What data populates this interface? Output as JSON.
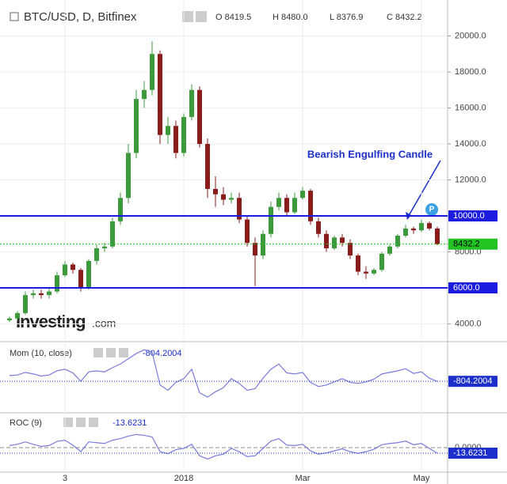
{
  "chart_data": [
    {
      "type": "candlestick",
      "title": "BTC/USD, D, Bitfinex",
      "ohlc_legend": [
        "O 8419.5",
        "H 8480.0",
        "L 8376.9",
        "C 8432.2"
      ],
      "categories": [
        null,
        null,
        null,
        null,
        null,
        null,
        null,
        "3",
        null,
        null,
        null,
        null,
        null,
        null,
        null,
        null,
        null,
        null,
        null,
        null,
        null,
        null,
        "2018",
        null,
        null,
        null,
        null,
        null,
        null,
        null,
        null,
        null,
        null,
        null,
        null,
        null,
        null,
        "Mar",
        null,
        null,
        null,
        null,
        null,
        null,
        null,
        null,
        null,
        null,
        null,
        null,
        null,
        null,
        "May",
        null,
        null
      ],
      "open": [
        4200,
        4300,
        4600,
        5600,
        5700,
        5600,
        5800,
        6700,
        7300,
        7000,
        6000,
        7500,
        8200,
        8300,
        9700,
        11000,
        13500,
        16500,
        17000,
        19000,
        14500,
        15000,
        13500,
        15500,
        17000,
        14000,
        11500,
        11200,
        10900,
        11000,
        9800,
        8500,
        7800,
        9000,
        10500,
        11000,
        10200,
        11000,
        11400,
        9700,
        9000,
        8200,
        8800,
        8500,
        7800,
        6900,
        6800,
        7000,
        7900,
        8300,
        8900,
        9300,
        9200,
        9600,
        9300
      ],
      "high": [
        4400,
        4700,
        5800,
        5900,
        5900,
        6000,
        6900,
        7500,
        7400,
        7100,
        7600,
        8400,
        8500,
        9900,
        11300,
        14000,
        17000,
        17500,
        19700,
        19200,
        15500,
        15300,
        15700,
        17300,
        17200,
        14300,
        12200,
        11600,
        11300,
        11300,
        10000,
        8800,
        9200,
        10800,
        11300,
        11200,
        11300,
        11600,
        11500,
        9900,
        9200,
        8900,
        9000,
        8700,
        7900,
        7200,
        7100,
        8000,
        8400,
        9000,
        9500,
        9400,
        9800,
        9700,
        9400
      ],
      "low": [
        4100,
        4200,
        4500,
        5400,
        5400,
        5400,
        5700,
        6600,
        6800,
        5800,
        5900,
        7300,
        8000,
        8200,
        9500,
        10700,
        13200,
        16000,
        16700,
        14000,
        14000,
        13200,
        13300,
        15300,
        13800,
        11000,
        10500,
        10600,
        10700,
        9600,
        8300,
        6100,
        7600,
        8800,
        10300,
        10000,
        10100,
        10900,
        9500,
        8800,
        8000,
        8100,
        8300,
        7600,
        6700,
        6500,
        6700,
        6900,
        7800,
        8200,
        8800,
        9000,
        9100,
        9200,
        8376.9
      ],
      "close": [
        4300,
        4600,
        5600,
        5700,
        5600,
        5800,
        6700,
        7300,
        7000,
        6000,
        7500,
        8200,
        8300,
        9700,
        11000,
        13500,
        16500,
        17000,
        19000,
        14500,
        15000,
        13500,
        15500,
        17000,
        14000,
        11500,
        11200,
        10900,
        11000,
        9800,
        8500,
        7800,
        9000,
        10500,
        11000,
        10200,
        11000,
        11400,
        9700,
        9000,
        8200,
        8800,
        8500,
        7800,
        6900,
        6800,
        7000,
        7900,
        8300,
        8900,
        9300,
        9200,
        9600,
        9300,
        8432.2
      ],
      "up_color": "#3c9a3c",
      "down_color": "#8b1c1c",
      "ylim": [
        3100,
        22000
      ],
      "yticks": [
        {
          "value": 4000,
          "label": "4000.0"
        },
        {
          "value": 6000,
          "label": "6000.0"
        },
        {
          "value": 8000,
          "label": "8000.0"
        },
        {
          "value": 10000,
          "label": "10000.0"
        },
        {
          "value": 12000,
          "label": "12000.0"
        },
        {
          "value": 14000,
          "label": "14000.0"
        },
        {
          "value": 16000,
          "label": "16000.0"
        },
        {
          "value": 18000,
          "label": "18000.0"
        },
        {
          "value": 20000,
          "label": "20000.0"
        }
      ],
      "grid": true,
      "hlines": [
        {
          "value": 10000,
          "label": "10000.0",
          "color": "#1c1ce0"
        },
        {
          "value": 6000,
          "label": "6000.0",
          "color": "#1c1ce0"
        }
      ],
      "last_price": {
        "value": 8432.2,
        "color": "#22c322"
      },
      "annotation": "Bearish Engulfing Candle",
      "watermark": {
        "brand": "Investing",
        "suffix": ".com"
      }
    },
    {
      "type": "line",
      "title": "Mom (10, close)",
      "color": "#7b7bdb",
      "last_color": "#1c2fcb",
      "ylim": [
        -6500,
        6000
      ],
      "values": [
        300,
        400,
        900,
        600,
        200,
        400,
        1200,
        1500,
        800,
        -800,
        1000,
        1200,
        1000,
        1800,
        2500,
        3500,
        4500,
        5200,
        4800,
        -1500,
        -2500,
        -1000,
        -300,
        1500,
        -3000,
        -3800,
        -2800,
        -2000,
        -300,
        -1200,
        -2500,
        -2200,
        -200,
        1500,
        2500,
        800,
        600,
        900,
        -1000,
        -1800,
        -1500,
        -900,
        -300,
        -1000,
        -1200,
        -900,
        -400,
        600,
        900,
        1200,
        1600,
        700,
        1000,
        -200,
        -804.2004
      ]
    },
    {
      "type": "line",
      "title": "ROC (9)",
      "color": "#7b7bdb",
      "last_color": "#1c2fcb",
      "ylim": [
        -56,
        79
      ],
      "yticks": [
        {
          "value": 0,
          "label": "0.0000"
        }
      ],
      "values": [
        5,
        8,
        14,
        8,
        3,
        5,
        15,
        18,
        6,
        -10,
        14,
        12,
        10,
        18,
        22,
        28,
        32,
        30,
        26,
        -10,
        -15,
        -5,
        -2,
        8,
        -20,
        -28,
        -20,
        -16,
        -2,
        -10,
        -22,
        -20,
        -2,
        16,
        22,
        6,
        5,
        8,
        -8,
        -16,
        -13,
        -8,
        -3,
        -10,
        -14,
        -10,
        -4,
        7,
        10,
        12,
        16,
        7,
        10,
        -2,
        -13.6231
      ]
    }
  ]
}
